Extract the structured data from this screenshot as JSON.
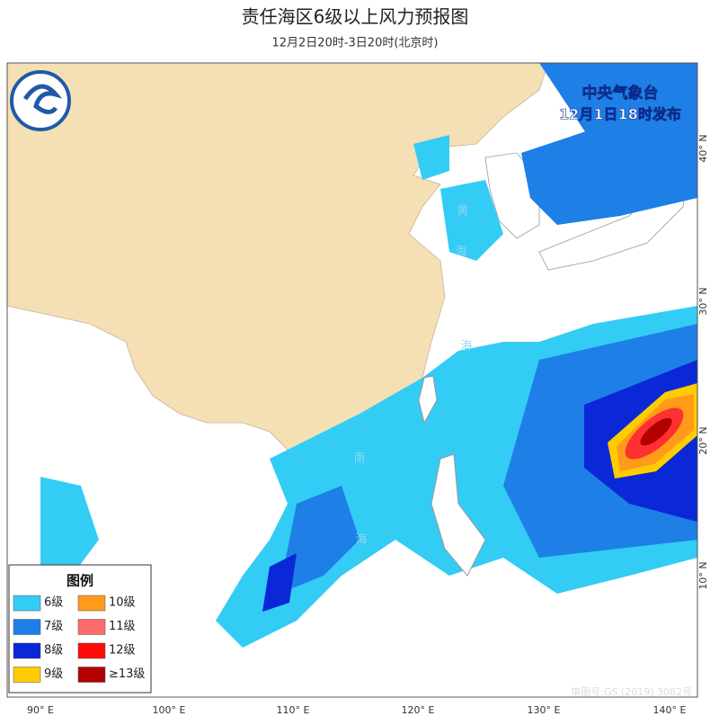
{
  "header": {
    "title": "责任海区6级以上风力预报图",
    "subtitle": "12月2日20时-3日20时(北京时)"
  },
  "agency": {
    "name": "中央气象台",
    "issued": "12月1日18时发布"
  },
  "legend": {
    "title": "图例",
    "items": [
      {
        "label": "6级",
        "color": "#33ccf5"
      },
      {
        "label": "10级",
        "color": "#ff9a1a"
      },
      {
        "label": "7级",
        "color": "#1e7fe6"
      },
      {
        "label": "11级",
        "color": "#ff6b6b"
      },
      {
        "label": "8级",
        "color": "#0a28d6"
      },
      {
        "label": "12级",
        "color": "#ff0a0a"
      },
      {
        "label": "9级",
        "color": "#ffcc00"
      },
      {
        "label": "≥13级",
        "color": "#b30000"
      }
    ]
  },
  "axes": {
    "longitude": [
      "90° E",
      "100° E",
      "110° E",
      "120° E",
      "130° E",
      "140° E"
    ],
    "latitude": [
      "40° N",
      "30° N",
      "20° N",
      "10° N"
    ]
  },
  "sea_labels": [
    "黄",
    "海",
    "海",
    "南",
    "海"
  ],
  "footer": {
    "approval": "审图号:GS (2019) 3082号"
  }
}
